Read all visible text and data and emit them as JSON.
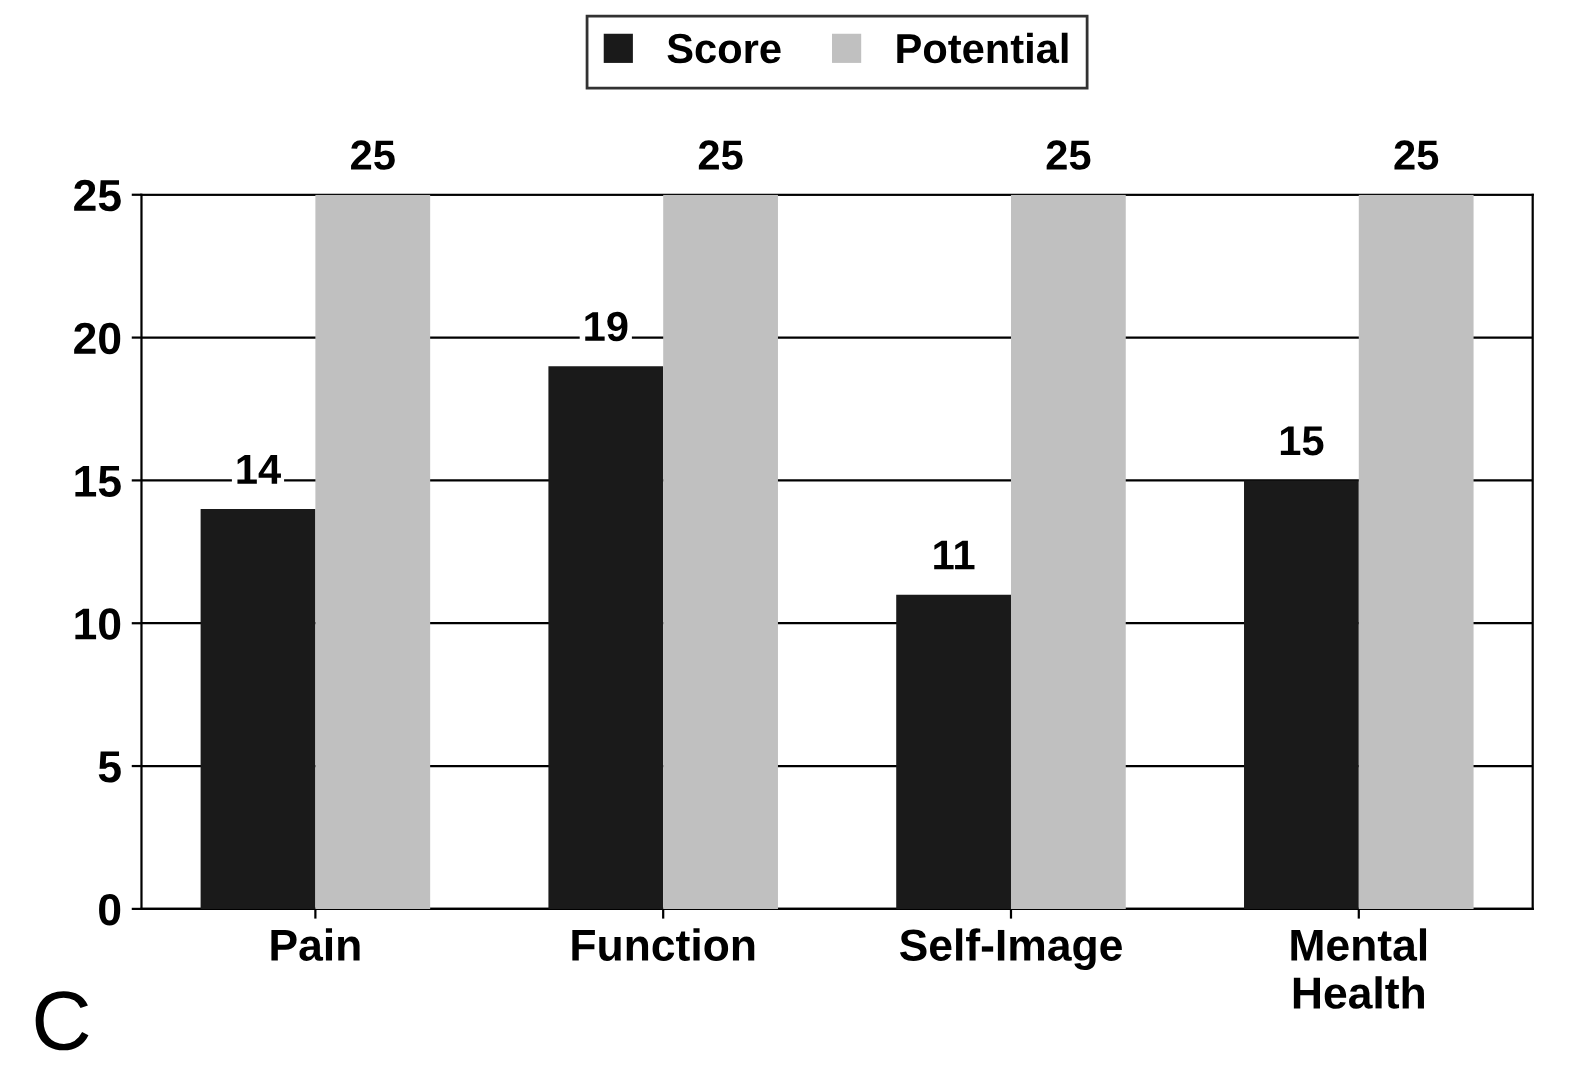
{
  "chart_data": {
    "type": "bar",
    "categories": [
      "Pain",
      "Function",
      "Self-Image",
      "Mental\nHealth"
    ],
    "series": [
      {
        "name": "Score",
        "color": "#1a1a1a",
        "values": [
          14,
          19,
          11,
          15
        ]
      },
      {
        "name": "Potential",
        "color": "#c0c0c0",
        "values": [
          25,
          25,
          25,
          25
        ]
      }
    ],
    "ylim": [
      0,
      25
    ],
    "yticks": [
      0,
      5,
      10,
      15,
      20,
      25
    ],
    "grid": "y",
    "legend": "top",
    "data_labels": true,
    "annotations": [
      "C"
    ]
  }
}
